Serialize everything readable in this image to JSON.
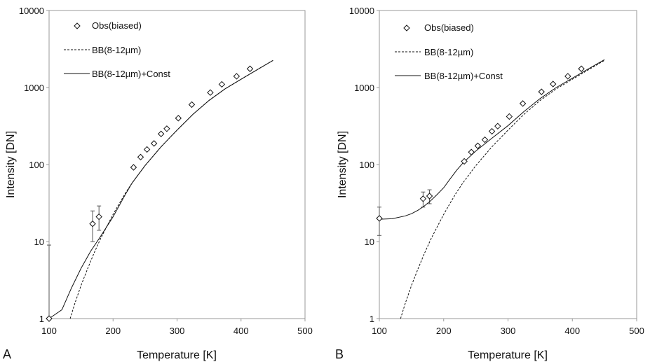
{
  "chart_data": [
    {
      "type": "scatter",
      "panel_label": "A",
      "xlabel": "Temperature [K]",
      "ylabel": "Intensity [DN]",
      "xlim": [
        100,
        500
      ],
      "ylim": [
        1,
        10000
      ],
      "yscale": "log",
      "x_ticks": [
        100,
        200,
        300,
        400,
        500
      ],
      "y_ticks": [
        1,
        10,
        100,
        1000,
        10000
      ],
      "x_tick_labels": [
        "100",
        "200",
        "300",
        "400",
        "500"
      ],
      "y_tick_labels": [
        "1",
        "10",
        "100",
        "1000",
        "10000"
      ],
      "grid": false,
      "legend_position": "top-left",
      "legend": [
        {
          "label": "Obs(biased)",
          "style": "diamond"
        },
        {
          "label": "BB(8-12µm)",
          "style": "dashed"
        },
        {
          "label": "BB(8-12µm)+Const",
          "style": "solid"
        }
      ],
      "series": [
        {
          "name": "Obs(biased)",
          "kind": "points",
          "x": [
            100,
            168,
            178,
            232,
            243,
            253,
            264,
            275,
            284,
            302,
            323,
            352,
            370,
            393,
            414
          ],
          "y": [
            1,
            17,
            21,
            92,
            125,
            157,
            188,
            250,
            292,
            400,
            600,
            860,
            1100,
            1400,
            1750
          ],
          "err_low": [
            0,
            7,
            7,
            0,
            0,
            0,
            0,
            0,
            0,
            0,
            0,
            0,
            0,
            0,
            0
          ],
          "err_high": [
            8,
            8,
            8,
            0,
            0,
            0,
            0,
            0,
            0,
            0,
            0,
            0,
            0,
            0,
            0
          ]
        },
        {
          "name": "BB(8-12µm)",
          "kind": "dashed",
          "x": [
            133,
            140,
            150,
            160,
            170,
            180,
            190,
            200,
            210,
            220,
            230,
            250,
            275,
            300,
            325,
            350,
            375,
            400,
            425,
            450
          ],
          "y": [
            1,
            1.55,
            2.7,
            4.4,
            7.0,
            10.7,
            15.6,
            22.5,
            31.5,
            43.5,
            58,
            97,
            170,
            280,
            450,
            680,
            960,
            1280,
            1700,
            2250
          ]
        },
        {
          "name": "BB(8-12µm)+Const",
          "kind": "solid",
          "x": [
            100,
            120,
            135,
            150,
            165,
            180,
            200,
            220,
            230,
            250,
            275,
            300,
            325,
            350,
            375,
            400,
            425,
            450
          ],
          "y": [
            1,
            1.3,
            2.5,
            4.5,
            7.5,
            11.5,
            21,
            42,
            58,
            97,
            170,
            280,
            450,
            680,
            960,
            1280,
            1700,
            2250
          ]
        }
      ]
    },
    {
      "type": "scatter",
      "panel_label": "B",
      "xlabel": "Temperature [K]",
      "ylabel": "Intensity [DN]",
      "xlim": [
        100,
        500
      ],
      "ylim": [
        1,
        10000
      ],
      "yscale": "log",
      "x_ticks": [
        100,
        200,
        300,
        400,
        500
      ],
      "y_ticks": [
        1,
        10,
        100,
        1000,
        10000
      ],
      "x_tick_labels": [
        "100",
        "200",
        "300",
        "400",
        "500"
      ],
      "y_tick_labels": [
        "1",
        "10",
        "100",
        "1000",
        "10000"
      ],
      "grid": false,
      "legend_position": "top-left",
      "legend": [
        {
          "label": "Obs(biased)",
          "style": "diamond"
        },
        {
          "label": "BB(8-12µm)",
          "style": "dashed"
        },
        {
          "label": "BB(8-12µm)+Const",
          "style": "solid"
        }
      ],
      "series": [
        {
          "name": "Obs(biased)",
          "kind": "points",
          "x": [
            100,
            168,
            178,
            232,
            243,
            253,
            264,
            275,
            284,
            302,
            323,
            352,
            370,
            393,
            414
          ],
          "y": [
            20,
            36,
            39,
            110,
            145,
            175,
            210,
            270,
            315,
            420,
            620,
            880,
            1110,
            1400,
            1750
          ],
          "err_low": [
            8,
            8,
            8,
            0,
            0,
            0,
            0,
            0,
            0,
            0,
            0,
            0,
            0,
            0,
            0
          ],
          "err_high": [
            8,
            8,
            8,
            0,
            0,
            0,
            0,
            0,
            0,
            0,
            0,
            0,
            0,
            0,
            0
          ]
        },
        {
          "name": "BB(8-12µm)",
          "kind": "dashed",
          "x": [
            133,
            140,
            150,
            160,
            170,
            180,
            190,
            200,
            210,
            220,
            230,
            250,
            275,
            300,
            325,
            350,
            375,
            400,
            425,
            450
          ],
          "y": [
            1,
            1.55,
            2.7,
            4.4,
            7.0,
            10.7,
            15.6,
            22.5,
            31.5,
            43.5,
            58,
            97,
            170,
            280,
            450,
            680,
            960,
            1280,
            1700,
            2250
          ]
        },
        {
          "name": "BB(8-12µm)+Const",
          "kind": "solid",
          "x": [
            100,
            120,
            140,
            150,
            160,
            170,
            180,
            190,
            200,
            210,
            220,
            230,
            250,
            275,
            300,
            325,
            350,
            375,
            400,
            425,
            450
          ],
          "y": [
            19.5,
            19.8,
            21.5,
            23,
            25.5,
            29,
            34,
            41,
            50,
            65,
            84,
            105,
            150,
            220,
            320,
            490,
            720,
            1000,
            1320,
            1750,
            2300
          ]
        }
      ]
    }
  ]
}
